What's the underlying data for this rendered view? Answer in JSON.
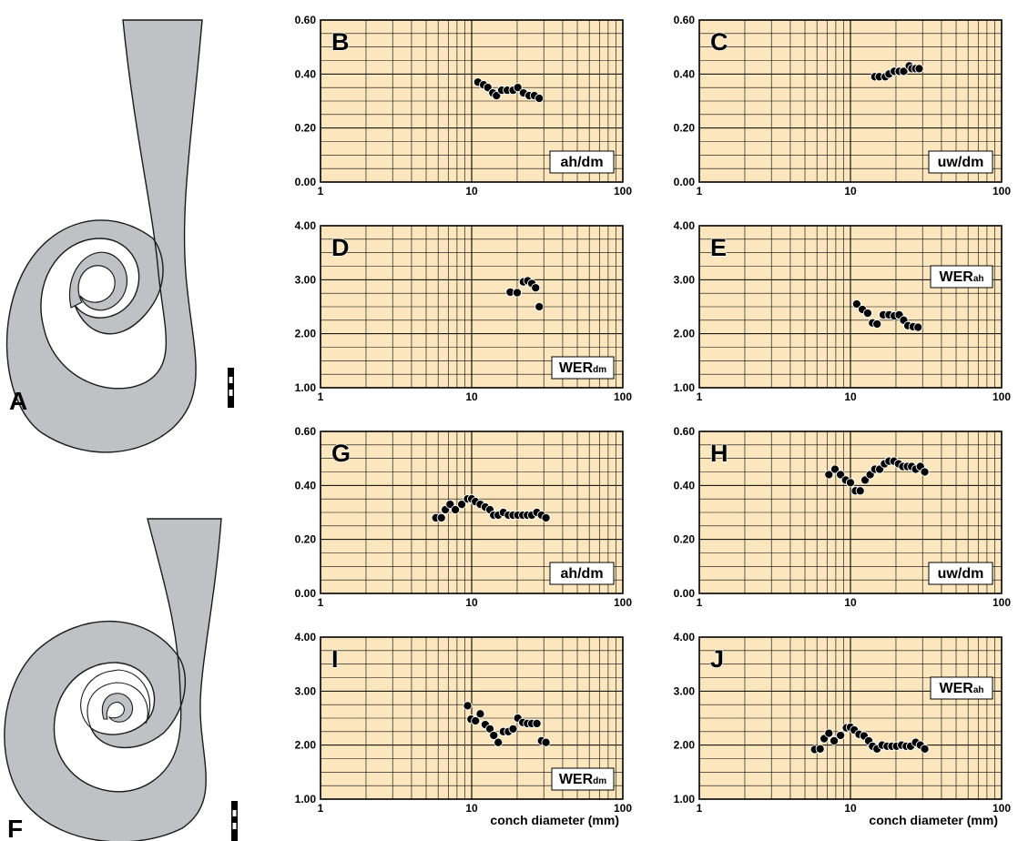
{
  "figure_panels": {
    "A": "A",
    "F": "F"
  },
  "colors": {
    "plot_background": "#fbe6bd",
    "grid_line": "#000000",
    "marker": "#000000",
    "shell_fill": "#c0c1c4",
    "shell_outline": "#1a1a1a"
  },
  "x_axis_label": "conch diameter (mm)",
  "chart_data": [
    {
      "type": "scatter",
      "letter": "B",
      "label": "ah/dm",
      "label_sub": "",
      "label_pos": "bottom-right",
      "xscale": "log",
      "xlim": [
        1,
        100
      ],
      "ylim": [
        0,
        0.6
      ],
      "grid": true,
      "xticks": [
        "1",
        "10",
        "100"
      ],
      "yticks": [
        "0.00",
        "0.20",
        "0.40",
        "0.60"
      ],
      "xlabel": "",
      "x": [
        11.0,
        12.0,
        12.8,
        13.8,
        14.6,
        15.8,
        17.2,
        18.8,
        20.2,
        22.0,
        24.0,
        26.0,
        28.0
      ],
      "y": [
        0.37,
        0.36,
        0.35,
        0.33,
        0.32,
        0.34,
        0.34,
        0.34,
        0.35,
        0.33,
        0.32,
        0.32,
        0.31
      ]
    },
    {
      "type": "scatter",
      "letter": "C",
      "label": "uw/dm",
      "label_sub": "",
      "label_pos": "bottom-right",
      "xscale": "log",
      "xlim": [
        1,
        100
      ],
      "ylim": [
        0,
        0.6
      ],
      "grid": true,
      "xticks": [
        "1",
        "10",
        "100"
      ],
      "yticks": [
        "0.00",
        "0.20",
        "0.40",
        "0.60"
      ],
      "xlabel": "",
      "x": [
        14.5,
        15.5,
        17.0,
        18.0,
        19.5,
        21.0,
        22.5,
        24.5,
        25.5,
        27.0,
        28.5
      ],
      "y": [
        0.39,
        0.39,
        0.39,
        0.4,
        0.41,
        0.41,
        0.41,
        0.43,
        0.42,
        0.42,
        0.42
      ]
    },
    {
      "type": "scatter",
      "letter": "D",
      "label": "WER",
      "label_sub": "dm",
      "label_pos": "bottom-right",
      "xscale": "log",
      "xlim": [
        1,
        100
      ],
      "ylim": [
        1,
        4
      ],
      "grid": true,
      "xticks": [
        "1",
        "10",
        "100"
      ],
      "yticks": [
        "1.00",
        "2.00",
        "3.00",
        "4.00"
      ],
      "xlabel": "",
      "x": [
        18.0,
        20.0,
        22.0,
        23.5,
        25.0,
        26.5,
        28.0
      ],
      "y": [
        2.77,
        2.76,
        2.96,
        2.98,
        2.93,
        2.85,
        2.5
      ]
    },
    {
      "type": "scatter",
      "letter": "E",
      "label": "WER",
      "label_sub": "ah",
      "label_pos": "top-right",
      "xscale": "log",
      "xlim": [
        1,
        100
      ],
      "ylim": [
        1,
        4
      ],
      "grid": true,
      "xticks": [
        "1",
        "10",
        "100"
      ],
      "yticks": [
        "1.00",
        "2.00",
        "3.00",
        "4.00"
      ],
      "xlabel": "",
      "x": [
        11.0,
        12.0,
        13.0,
        14.0,
        15.0,
        16.5,
        18.0,
        19.5,
        21.0,
        22.5,
        24.0,
        26.0,
        28.0
      ],
      "y": [
        2.55,
        2.45,
        2.38,
        2.2,
        2.18,
        2.35,
        2.35,
        2.33,
        2.35,
        2.25,
        2.15,
        2.13,
        2.12
      ]
    },
    {
      "type": "scatter",
      "letter": "G",
      "label": "ah/dm",
      "label_sub": "",
      "label_pos": "bottom-right",
      "xscale": "log",
      "xlim": [
        1,
        100
      ],
      "ylim": [
        0,
        0.6
      ],
      "grid": true,
      "xticks": [
        "1",
        "10",
        "100"
      ],
      "yticks": [
        "0.00",
        "0.20",
        "0.40",
        "0.60"
      ],
      "xlabel": "",
      "x": [
        5.8,
        6.3,
        6.7,
        7.2,
        7.8,
        8.6,
        9.4,
        10.0,
        10.6,
        11.4,
        12.3,
        13.2,
        14.0,
        15.0,
        16.2,
        17.5,
        18.8,
        20.2,
        21.8,
        23.4,
        25.0,
        27.0,
        29.0,
        31.0
      ],
      "y": [
        0.28,
        0.28,
        0.31,
        0.33,
        0.31,
        0.33,
        0.35,
        0.35,
        0.34,
        0.33,
        0.32,
        0.31,
        0.29,
        0.29,
        0.3,
        0.29,
        0.29,
        0.29,
        0.29,
        0.29,
        0.29,
        0.3,
        0.29,
        0.28
      ]
    },
    {
      "type": "scatter",
      "letter": "H",
      "label": "uw/dm",
      "label_sub": "",
      "label_pos": "bottom-right",
      "xscale": "log",
      "xlim": [
        1,
        100
      ],
      "ylim": [
        0,
        0.6
      ],
      "grid": true,
      "xticks": [
        "1",
        "10",
        "100"
      ],
      "yticks": [
        "0.00",
        "0.20",
        "0.40",
        "0.60"
      ],
      "xlabel": "",
      "x": [
        7.2,
        7.9,
        8.6,
        9.3,
        10.0,
        10.8,
        11.6,
        12.5,
        13.5,
        14.5,
        15.6,
        16.8,
        18.0,
        19.4,
        20.8,
        22.2,
        23.8,
        25.4,
        27.0,
        29.0,
        31.0
      ],
      "y": [
        0.44,
        0.46,
        0.44,
        0.42,
        0.41,
        0.38,
        0.38,
        0.42,
        0.44,
        0.46,
        0.46,
        0.48,
        0.49,
        0.49,
        0.48,
        0.47,
        0.47,
        0.47,
        0.46,
        0.47,
        0.45
      ]
    },
    {
      "type": "scatter",
      "letter": "I",
      "label": "WER",
      "label_sub": "dm",
      "label_pos": "bottom-right",
      "xscale": "log",
      "xlim": [
        1,
        100
      ],
      "ylim": [
        1,
        4
      ],
      "grid": true,
      "xticks": [
        "1",
        "10",
        "100"
      ],
      "yticks": [
        "1.00",
        "2.00",
        "3.00",
        "4.00"
      ],
      "xlabel": "conch diameter (mm)",
      "x": [
        9.4,
        9.9,
        10.6,
        11.4,
        12.3,
        13.2,
        14.0,
        15.0,
        16.2,
        17.5,
        18.8,
        20.2,
        21.8,
        23.4,
        25.0,
        27.0,
        29.0,
        31.0
      ],
      "y": [
        2.73,
        2.48,
        2.45,
        2.58,
        2.38,
        2.3,
        2.18,
        2.05,
        2.25,
        2.25,
        2.3,
        2.5,
        2.42,
        2.4,
        2.4,
        2.4,
        2.08,
        2.05
      ]
    },
    {
      "type": "scatter",
      "letter": "J",
      "label": "WER",
      "label_sub": "ah",
      "label_pos": "top-right",
      "xscale": "log",
      "xlim": [
        1,
        100
      ],
      "ylim": [
        1,
        4
      ],
      "grid": true,
      "xticks": [
        "1",
        "10",
        "100"
      ],
      "yticks": [
        "1.00",
        "2.00",
        "3.00",
        "4.00"
      ],
      "xlabel": "conch diameter (mm)",
      "x": [
        5.8,
        6.3,
        6.7,
        7.2,
        7.8,
        8.6,
        9.4,
        10.0,
        10.6,
        11.4,
        12.3,
        13.2,
        14.0,
        15.0,
        16.2,
        17.5,
        18.8,
        20.2,
        21.8,
        23.4,
        25.0,
        27.0,
        29.0,
        31.0
      ],
      "y": [
        1.92,
        1.93,
        2.12,
        2.22,
        2.08,
        2.18,
        2.32,
        2.33,
        2.28,
        2.2,
        2.17,
        2.08,
        1.98,
        1.93,
        2.0,
        1.98,
        1.98,
        1.98,
        2.0,
        1.98,
        1.98,
        2.05,
        2.0,
        1.93
      ]
    }
  ]
}
